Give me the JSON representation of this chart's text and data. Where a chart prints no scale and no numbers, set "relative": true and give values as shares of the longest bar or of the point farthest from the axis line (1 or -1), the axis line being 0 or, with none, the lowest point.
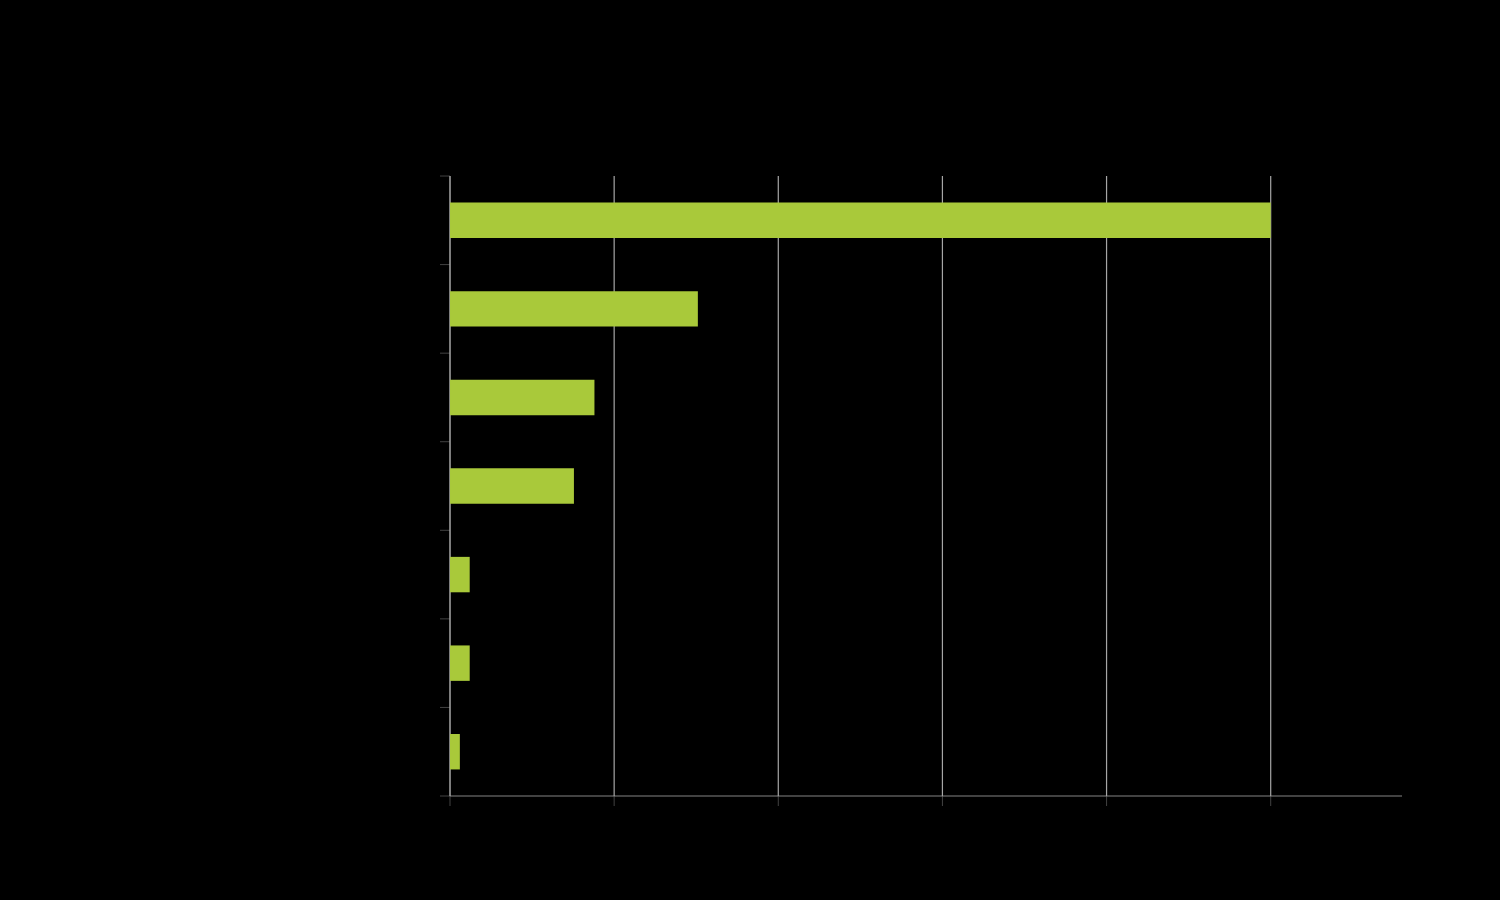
{
  "chart_data": {
    "type": "bar",
    "orientation": "horizontal",
    "relative": true,
    "grid": "x",
    "categories": [
      null,
      null,
      null,
      null,
      null,
      null,
      null
    ],
    "values": [
      1,
      0.302,
      0.176,
      0.151,
      0.024,
      0.024,
      0.012
    ],
    "color": "#a9c93a"
  }
}
